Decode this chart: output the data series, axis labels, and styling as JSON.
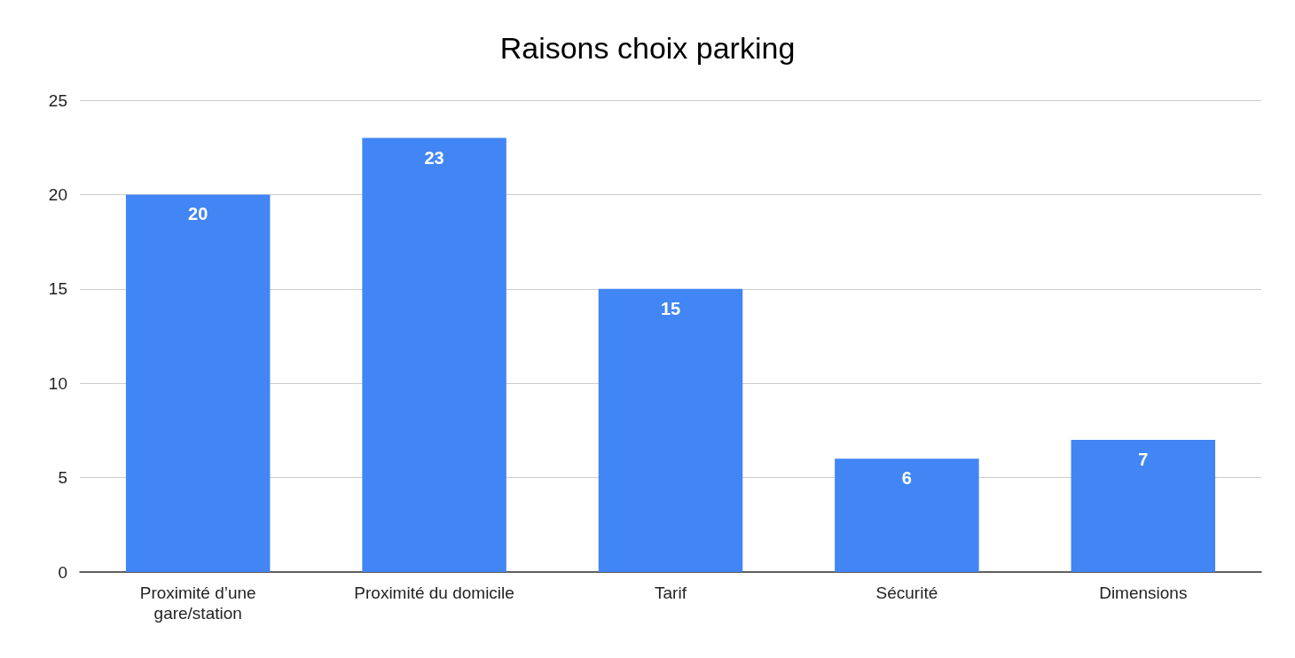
{
  "chart_data": {
    "type": "bar",
    "title": "Raisons choix parking",
    "categories": [
      "Proximité d’une gare/station",
      "Proximité du domicile",
      "Tarif",
      "Sécurité",
      "Dimensions"
    ],
    "values": [
      20,
      23,
      15,
      6,
      7
    ],
    "color": "#4285f4",
    "ylim": [
      0,
      25
    ],
    "yticks": [
      0,
      5,
      10,
      15,
      20,
      25
    ],
    "grid": "y",
    "data_labels": true
  }
}
